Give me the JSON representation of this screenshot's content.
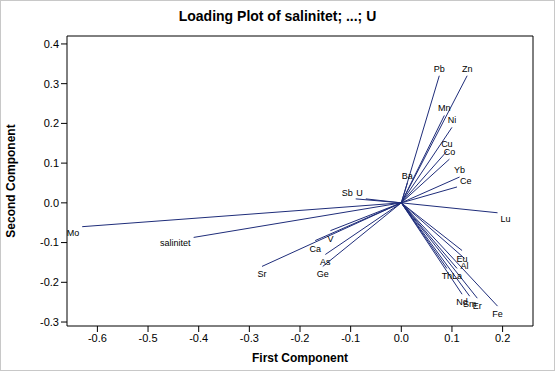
{
  "chart_data": {
    "type": "scatter",
    "title": "Loading Plot of salinitet; ...; U",
    "x_label": "First Component",
    "y_label": "Second Component",
    "color": "#1f2d7a",
    "xlim": [
      -0.66,
      0.26
    ],
    "ylim": [
      -0.31,
      0.42
    ],
    "xticks": [
      -0.6,
      -0.5,
      -0.4,
      -0.3,
      -0.2,
      -0.1,
      {
        "value": 0,
        "label": "0.0"
      },
      0.1,
      0.2
    ],
    "yticks": [
      -0.3,
      -0.2,
      -0.1,
      {
        "value": 0,
        "label": "0.0"
      },
      0.1,
      0.2,
      0.3,
      0.4
    ],
    "labels": [
      "Pb",
      "Zn",
      "Mn",
      "Ni",
      "Cu",
      "Co",
      "Yb",
      "Ce",
      "Ba",
      "Lu",
      "Sb",
      "U",
      "Mo",
      "salinitet",
      "Sr",
      "Ca",
      "V",
      "As",
      "Ge",
      "Eu",
      "Al",
      "Th",
      "La",
      "Nd",
      "Sm",
      "Er",
      "Fe"
    ],
    "x": [
      0.075,
      0.13,
      0.085,
      0.1,
      0.09,
      0.095,
      0.115,
      0.11,
      0.012,
      0.19,
      -0.09,
      -0.07,
      -0.63,
      -0.41,
      -0.275,
      -0.17,
      -0.14,
      -0.15,
      -0.155,
      0.12,
      0.125,
      0.09,
      0.11,
      0.12,
      0.135,
      0.15,
      0.19
    ],
    "y": [
      0.32,
      0.32,
      0.22,
      0.19,
      0.13,
      0.11,
      0.065,
      0.04,
      0.05,
      -0.025,
      0.01,
      0.01,
      -0.06,
      -0.087,
      -0.16,
      -0.095,
      -0.07,
      -0.13,
      -0.16,
      -0.12,
      -0.14,
      -0.165,
      -0.165,
      -0.23,
      -0.235,
      -0.24,
      -0.26
    ]
  }
}
